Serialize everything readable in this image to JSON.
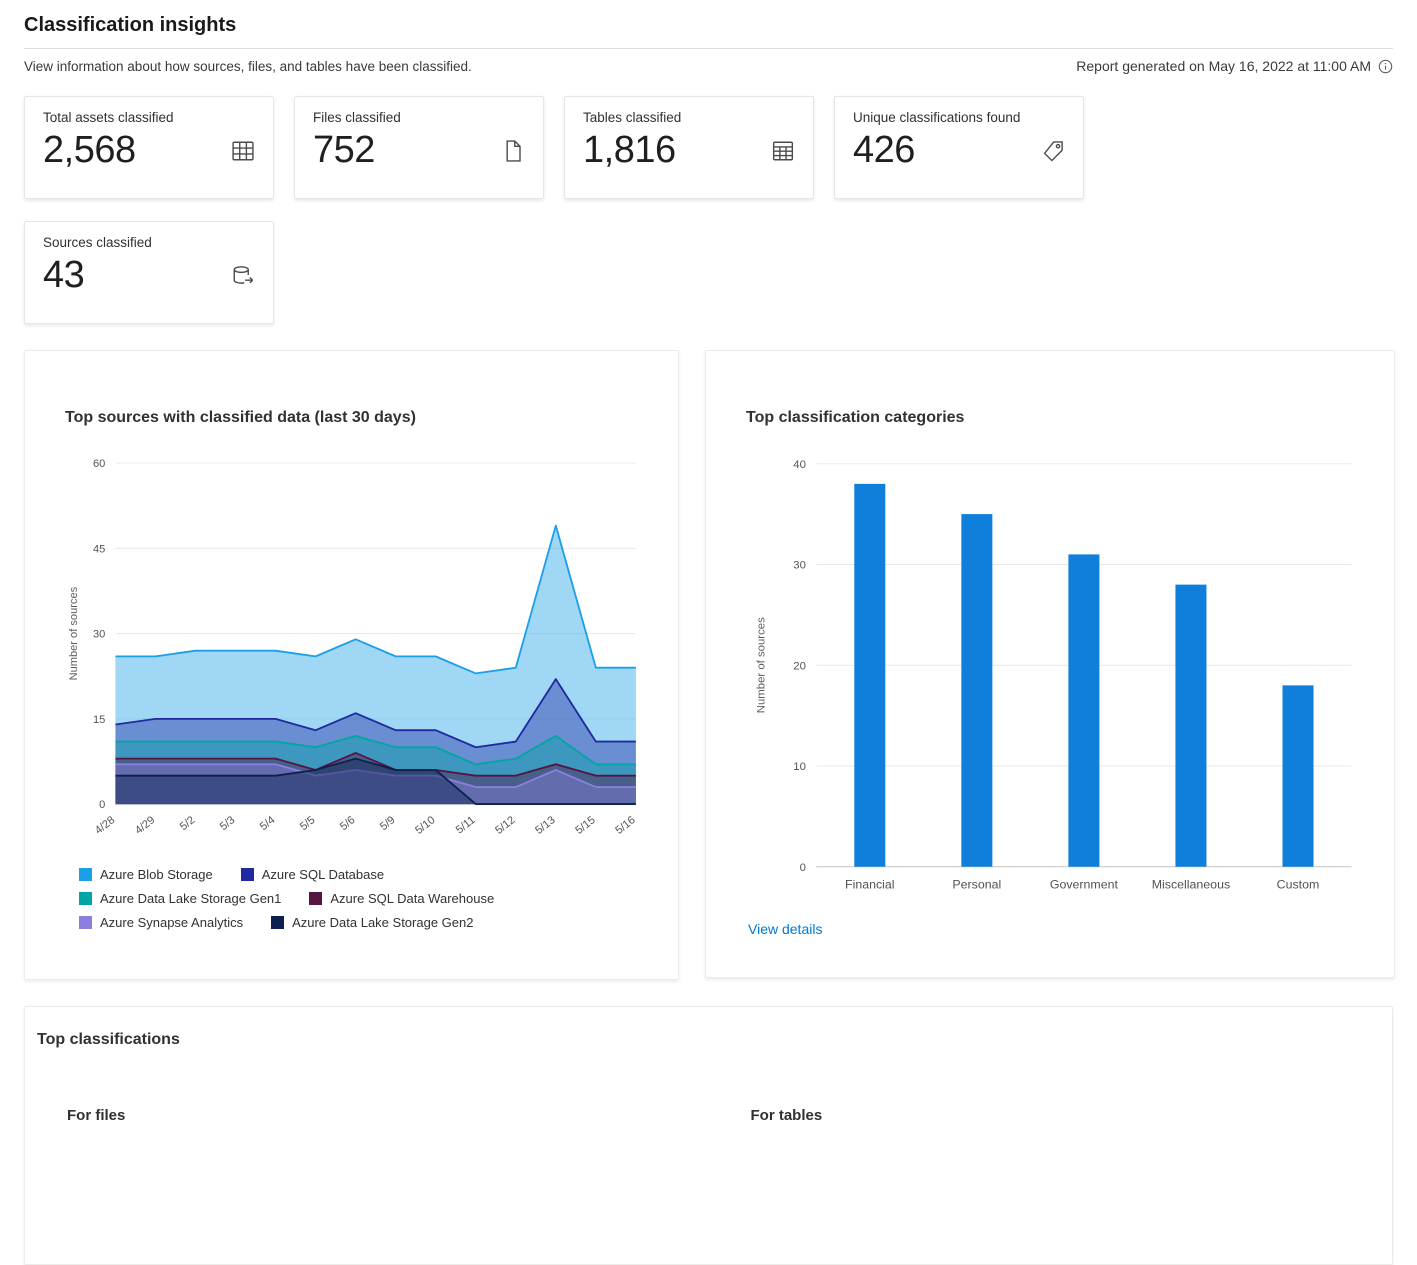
{
  "header": {
    "title": "Classification insights",
    "subtitle": "View information about how sources, files, and tables have been classified.",
    "report_generated": "Report generated on May 16, 2022 at 11:00 AM"
  },
  "cards": [
    {
      "label": "Total assets classified",
      "value": "2,568",
      "icon": "table-grid-icon"
    },
    {
      "label": "Files classified",
      "value": "752",
      "icon": "file-icon"
    },
    {
      "label": "Tables classified",
      "value": "1,816",
      "icon": "table-cells-icon"
    },
    {
      "label": "Unique classifications found",
      "value": "426",
      "icon": "classification-tag-icon"
    },
    {
      "label": "Sources classified",
      "value": "43",
      "icon": "database-source-icon"
    }
  ],
  "panels": {
    "sources_chart_title": "Top sources with classified data (last 30 days)",
    "categories_chart_title": "Top classification categories",
    "view_details": "View details",
    "top_classifications_title": "Top classifications",
    "for_files": "For files",
    "for_tables": "For tables"
  },
  "colors": {
    "accent": "#0078d4",
    "bar": "#0f7fdb"
  },
  "chart_data": [
    {
      "type": "area",
      "title": "Top sources with classified data (last 30 days)",
      "ylabel": "Number of sources",
      "ylim": [
        0,
        60
      ],
      "yticks": [
        0,
        15,
        30,
        45,
        60
      ],
      "grid": true,
      "legend_position": "bottom",
      "x": [
        "4/28",
        "4/29",
        "5/2",
        "5/3",
        "5/4",
        "5/5",
        "5/6",
        "5/9",
        "5/10",
        "5/11",
        "5/12",
        "5/13",
        "5/15",
        "5/16"
      ],
      "series": [
        {
          "name": "Azure Blob Storage",
          "color": "#1a9fe8",
          "values": [
            26,
            26,
            27,
            27,
            27,
            26,
            29,
            26,
            26,
            23,
            24,
            49,
            24,
            24
          ]
        },
        {
          "name": "Azure SQL Database",
          "color": "#2029a0",
          "values": [
            14,
            15,
            15,
            15,
            15,
            13,
            16,
            13,
            13,
            10,
            11,
            22,
            11,
            11
          ]
        },
        {
          "name": "Azure Data Lake Storage Gen1",
          "color": "#00a5a5",
          "values": [
            11,
            11,
            11,
            11,
            11,
            10,
            12,
            10,
            10,
            7,
            8,
            12,
            7,
            7
          ]
        },
        {
          "name": "Azure SQL Data Warehouse",
          "color": "#551441",
          "values": [
            8,
            8,
            8,
            8,
            8,
            6,
            9,
            6,
            6,
            5,
            5,
            7,
            5,
            5
          ]
        },
        {
          "name": "Azure Synapse Analytics",
          "color": "#8a7fe0",
          "values": [
            7,
            7,
            7,
            7,
            7,
            5,
            6,
            5,
            5,
            3,
            3,
            6,
            3,
            3
          ]
        },
        {
          "name": "Azure Data Lake Storage Gen2",
          "color": "#0c2150",
          "values": [
            5,
            5,
            5,
            5,
            5,
            6,
            8,
            6,
            6,
            0,
            0,
            0,
            0,
            0
          ]
        }
      ]
    },
    {
      "type": "bar",
      "title": "Top classification categories",
      "ylabel": "Number of sources",
      "ylim": [
        0,
        40
      ],
      "yticks": [
        0,
        10,
        20,
        30,
        40
      ],
      "grid": true,
      "categories": [
        "Financial",
        "Personal",
        "Government",
        "Miscellaneous",
        "Custom"
      ],
      "values": [
        38,
        35,
        31,
        28,
        18
      ],
      "bar_color": "#0f7fdb"
    }
  ]
}
